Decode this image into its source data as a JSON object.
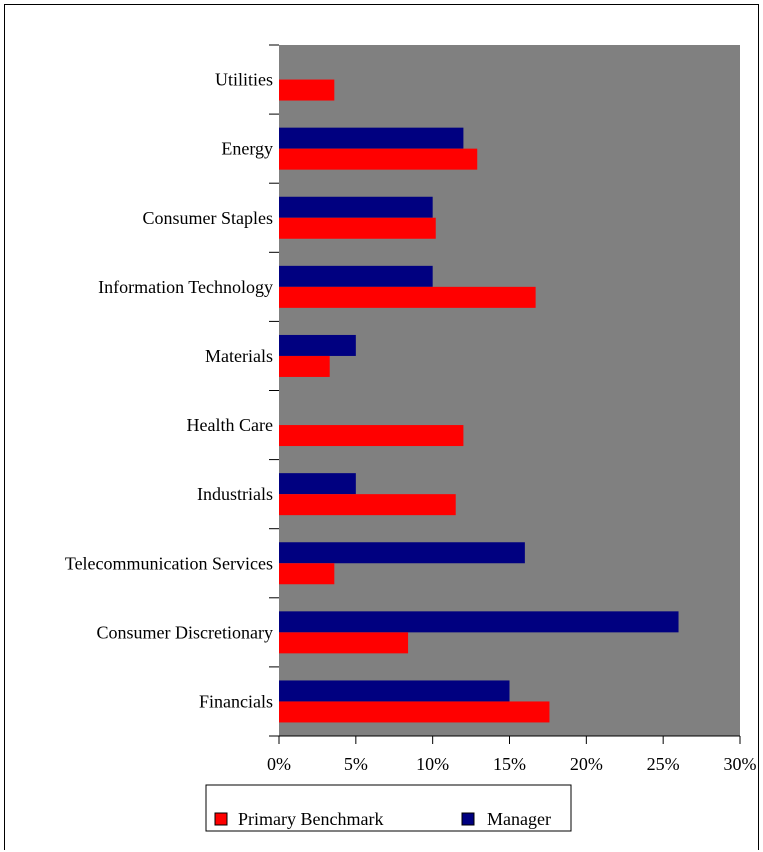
{
  "chart_data": {
    "type": "bar",
    "orientation": "horizontal",
    "categories": [
      "Utilities",
      "Energy",
      "Consumer Staples",
      "Information Technology",
      "Materials",
      "Health Care",
      "Industrials",
      "Telecommunication Services",
      "Consumer Discretionary",
      "Financials"
    ],
    "series": [
      {
        "name": "Manager",
        "color": "#000080",
        "values": [
          0,
          12.0,
          10.0,
          10.0,
          5.0,
          0,
          5.0,
          16.0,
          26.0,
          15.0
        ]
      },
      {
        "name": "Primary Benchmark",
        "color": "#ff0000",
        "values": [
          3.6,
          12.9,
          10.2,
          16.7,
          3.3,
          12.0,
          11.5,
          3.6,
          8.4,
          17.6
        ]
      }
    ],
    "xlim": [
      0,
      30
    ],
    "xticks": [
      "0%",
      "5%",
      "10%",
      "15%",
      "20%",
      "25%",
      "30%"
    ],
    "plot_background": "#808080",
    "grid": false,
    "legend_position": "bottom",
    "legend": [
      "Primary Benchmark",
      "Manager"
    ]
  }
}
